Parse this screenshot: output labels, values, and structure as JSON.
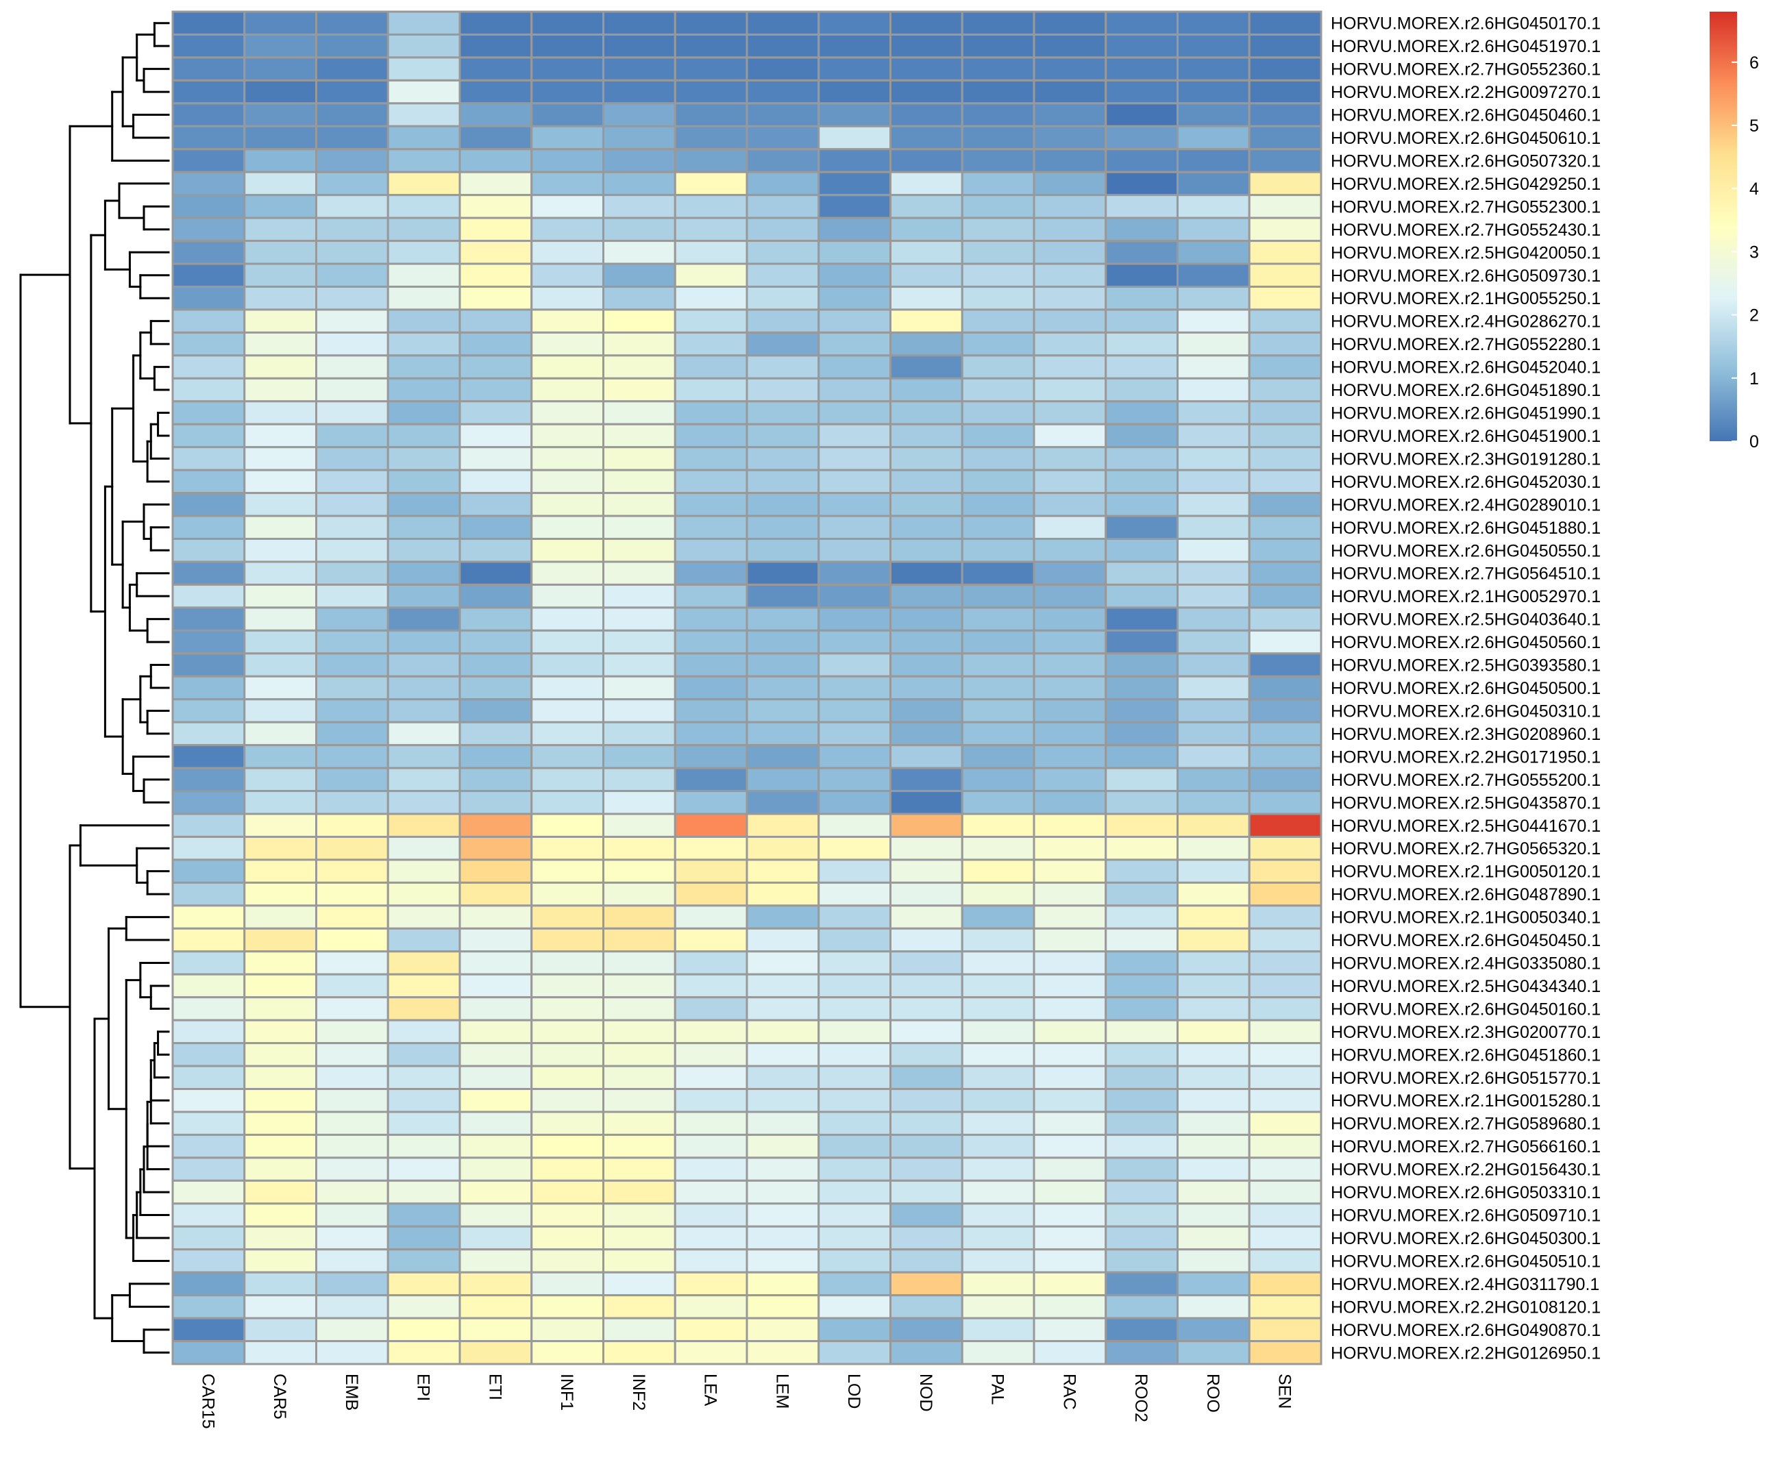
{
  "chart_data": {
    "type": "heatmap",
    "columns": [
      "CAR15",
      "CAR5",
      "EMB",
      "EPI",
      "ETI",
      "INF1",
      "INF2",
      "LEA",
      "LEM",
      "LOD",
      "NOD",
      "PAL",
      "RAC",
      "ROO2",
      "ROO",
      "SEN"
    ],
    "rows": [
      "HORVU.MOREX.r2.6HG0450170.1",
      "HORVU.MOREX.r2.6HG0451970.1",
      "HORVU.MOREX.r2.7HG0552360.1",
      "HORVU.MOREX.r2.2HG0097270.1",
      "HORVU.MOREX.r2.6HG0450460.1",
      "HORVU.MOREX.r2.6HG0450610.1",
      "HORVU.MOREX.r2.6HG0507320.1",
      "HORVU.MOREX.r2.5HG0429250.1",
      "HORVU.MOREX.r2.7HG0552300.1",
      "HORVU.MOREX.r2.7HG0552430.1",
      "HORVU.MOREX.r2.5HG0420050.1",
      "HORVU.MOREX.r2.6HG0509730.1",
      "HORVU.MOREX.r2.1HG0055250.1",
      "HORVU.MOREX.r2.4HG0286270.1",
      "HORVU.MOREX.r2.7HG0552280.1",
      "HORVU.MOREX.r2.6HG0452040.1",
      "HORVU.MOREX.r2.6HG0451890.1",
      "HORVU.MOREX.r2.6HG0451990.1",
      "HORVU.MOREX.r2.6HG0451900.1",
      "HORVU.MOREX.r2.3HG0191280.1",
      "HORVU.MOREX.r2.6HG0452030.1",
      "HORVU.MOREX.r2.4HG0289010.1",
      "HORVU.MOREX.r2.6HG0451880.1",
      "HORVU.MOREX.r2.6HG0450550.1",
      "HORVU.MOREX.r2.7HG0564510.1",
      "HORVU.MOREX.r2.1HG0052970.1",
      "HORVU.MOREX.r2.5HG0403640.1",
      "HORVU.MOREX.r2.6HG0450560.1",
      "HORVU.MOREX.r2.5HG0393580.1",
      "HORVU.MOREX.r2.6HG0450500.1",
      "HORVU.MOREX.r2.6HG0450310.1",
      "HORVU.MOREX.r2.3HG0208960.1",
      "HORVU.MOREX.r2.2HG0171950.1",
      "HORVU.MOREX.r2.7HG0555200.1",
      "HORVU.MOREX.r2.5HG0435870.1",
      "HORVU.MOREX.r2.5HG0441670.1",
      "HORVU.MOREX.r2.7HG0565320.1",
      "HORVU.MOREX.r2.1HG0050120.1",
      "HORVU.MOREX.r2.6HG0487890.1",
      "HORVU.MOREX.r2.1HG0050340.1",
      "HORVU.MOREX.r2.6HG0450450.1",
      "HORVU.MOREX.r2.4HG0335080.1",
      "HORVU.MOREX.r2.5HG0434340.1",
      "HORVU.MOREX.r2.6HG0450160.1",
      "HORVU.MOREX.r2.3HG0200770.1",
      "HORVU.MOREX.r2.6HG0451860.1",
      "HORVU.MOREX.r2.6HG0515770.1",
      "HORVU.MOREX.r2.1HG0015280.1",
      "HORVU.MOREX.r2.7HG0589680.1",
      "HORVU.MOREX.r2.7HG0566160.1",
      "HORVU.MOREX.r2.2HG0156430.1",
      "HORVU.MOREX.r2.6HG0503310.1",
      "HORVU.MOREX.r2.6HG0509710.1",
      "HORVU.MOREX.r2.6HG0450300.1",
      "HORVU.MOREX.r2.6HG0450510.1",
      "HORVU.MOREX.r2.4HG0311790.1",
      "HORVU.MOREX.r2.2HG0108120.1",
      "HORVU.MOREX.r2.6HG0490870.1",
      "HORVU.MOREX.r2.2HG0126950.1"
    ],
    "values": [
      [
        0.1,
        0.3,
        0.3,
        1.4,
        0.1,
        0.1,
        0.1,
        0.1,
        0.1,
        0.2,
        0.1,
        0.1,
        0.1,
        0.2,
        0.2,
        0.1
      ],
      [
        0.2,
        0.5,
        0.4,
        1.5,
        0.1,
        0.1,
        0.1,
        0.1,
        0.1,
        0.1,
        0.1,
        0.1,
        0.1,
        0.2,
        0.2,
        0.1
      ],
      [
        0.3,
        0.4,
        0.2,
        1.8,
        0.2,
        0.2,
        0.2,
        0.2,
        0.1,
        0.2,
        0.2,
        0.2,
        0.2,
        0.2,
        0.2,
        0.1
      ],
      [
        0.2,
        0.1,
        0.2,
        2.4,
        0.2,
        0.2,
        0.2,
        0.2,
        0.2,
        0.1,
        0.1,
        0.1,
        0.1,
        0.2,
        0.2,
        0.1
      ],
      [
        0.3,
        0.5,
        0.4,
        1.9,
        0.7,
        0.4,
        0.8,
        0.4,
        0.4,
        0.5,
        0.3,
        0.3,
        0.4,
        0.0,
        0.4,
        0.3
      ],
      [
        0.4,
        0.4,
        0.4,
        1.1,
        0.4,
        1.1,
        0.9,
        0.5,
        0.5,
        2.0,
        0.4,
        0.4,
        0.5,
        0.6,
        1.0,
        0.4
      ],
      [
        0.3,
        1.0,
        0.8,
        1.2,
        1.1,
        1.0,
        0.8,
        0.7,
        0.5,
        0.3,
        0.3,
        0.4,
        0.4,
        0.3,
        0.3,
        0.4
      ],
      [
        0.8,
        2.0,
        1.2,
        3.8,
        2.8,
        1.2,
        1.1,
        3.5,
        1.0,
        0.2,
        2.1,
        1.2,
        0.9,
        0.0,
        0.4,
        4.0
      ],
      [
        0.7,
        1.1,
        1.9,
        1.8,
        3.2,
        2.3,
        1.7,
        1.6,
        1.4,
        0.2,
        1.5,
        1.3,
        1.4,
        1.7,
        1.9,
        2.7
      ],
      [
        0.8,
        1.6,
        1.5,
        1.5,
        3.5,
        1.6,
        1.5,
        1.6,
        1.4,
        0.8,
        1.3,
        1.5,
        1.4,
        0.9,
        1.4,
        3.0
      ],
      [
        0.5,
        1.5,
        1.5,
        1.8,
        3.7,
        2.1,
        2.4,
        2.0,
        1.5,
        1.3,
        1.8,
        1.5,
        1.4,
        0.5,
        0.9,
        3.8
      ],
      [
        0.2,
        1.5,
        1.3,
        2.5,
        3.5,
        1.7,
        0.9,
        3.0,
        1.6,
        1.0,
        1.6,
        1.7,
        1.6,
        0.1,
        0.3,
        3.8
      ],
      [
        0.6,
        1.7,
        1.7,
        2.5,
        3.3,
        2.1,
        1.4,
        2.2,
        1.8,
        1.1,
        2.1,
        1.8,
        1.7,
        1.3,
        1.5,
        3.7
      ],
      [
        1.4,
        3.0,
        2.4,
        1.4,
        1.4,
        3.2,
        3.4,
        1.8,
        1.4,
        1.4,
        3.5,
        1.4,
        1.4,
        1.4,
        2.3,
        1.5
      ],
      [
        1.3,
        2.7,
        2.2,
        1.6,
        1.2,
        2.8,
        3.0,
        1.6,
        0.8,
        1.3,
        0.9,
        1.2,
        1.6,
        1.8,
        2.5,
        1.4
      ],
      [
        1.7,
        3.0,
        2.5,
        1.3,
        1.3,
        3.1,
        3.0,
        1.4,
        1.6,
        1.2,
        0.4,
        1.5,
        1.7,
        1.7,
        2.4,
        1.2
      ],
      [
        1.8,
        2.8,
        2.5,
        1.2,
        1.3,
        3.0,
        3.2,
        1.8,
        1.7,
        1.4,
        1.2,
        1.6,
        1.8,
        1.5,
        2.2,
        1.5
      ],
      [
        1.2,
        2.1,
        2.1,
        1.0,
        1.6,
        2.7,
        2.6,
        1.2,
        1.3,
        1.3,
        1.3,
        1.4,
        1.5,
        1.0,
        1.6,
        1.4
      ],
      [
        1.3,
        2.3,
        1.3,
        1.3,
        2.3,
        2.8,
        2.8,
        1.2,
        1.3,
        1.7,
        1.4,
        1.2,
        2.3,
        0.9,
        1.7,
        1.5
      ],
      [
        1.6,
        2.3,
        1.4,
        1.5,
        2.4,
        2.8,
        3.0,
        1.3,
        1.4,
        1.7,
        1.5,
        1.4,
        1.5,
        1.4,
        1.8,
        1.6
      ],
      [
        1.2,
        2.3,
        1.7,
        1.3,
        2.2,
        2.7,
        2.9,
        1.4,
        1.4,
        1.6,
        1.4,
        1.3,
        1.6,
        1.3,
        1.7,
        1.7
      ],
      [
        0.7,
        2.0,
        1.7,
        1.0,
        1.4,
        2.9,
        2.9,
        1.2,
        1.1,
        1.2,
        1.3,
        1.1,
        1.4,
        1.2,
        1.9,
        0.9
      ],
      [
        1.2,
        2.6,
        1.9,
        1.3,
        1.0,
        2.6,
        2.6,
        1.3,
        1.2,
        1.4,
        1.2,
        1.2,
        2.1,
        0.4,
        1.8,
        1.3
      ],
      [
        1.5,
        2.2,
        2.0,
        1.5,
        1.5,
        3.1,
        3.0,
        1.4,
        1.3,
        1.4,
        1.3,
        1.3,
        1.3,
        1.2,
        2.2,
        1.2
      ],
      [
        0.5,
        2.0,
        1.5,
        1.0,
        0.1,
        2.7,
        2.7,
        0.8,
        0.1,
        0.6,
        0.1,
        0.2,
        0.8,
        1.5,
        1.7,
        1.0
      ],
      [
        1.9,
        2.6,
        2.0,
        1.1,
        0.7,
        2.5,
        2.2,
        1.3,
        0.4,
        0.6,
        0.9,
        0.9,
        0.9,
        1.3,
        1.7,
        1.0
      ],
      [
        0.5,
        2.5,
        1.2,
        0.5,
        1.3,
        2.2,
        2.2,
        1.2,
        1.2,
        1.0,
        1.0,
        1.2,
        1.1,
        0.2,
        1.4,
        1.6
      ],
      [
        0.6,
        1.8,
        1.3,
        1.2,
        1.3,
        2.0,
        2.0,
        1.2,
        1.1,
        1.2,
        1.1,
        1.1,
        1.2,
        0.3,
        1.5,
        2.3
      ],
      [
        0.5,
        1.8,
        1.2,
        1.4,
        1.2,
        1.8,
        2.0,
        1.1,
        1.1,
        1.6,
        1.1,
        1.3,
        1.3,
        0.9,
        1.4,
        0.3
      ],
      [
        1.1,
        2.3,
        1.5,
        1.4,
        1.3,
        2.2,
        2.4,
        1.0,
        1.2,
        1.3,
        1.2,
        1.3,
        1.3,
        0.9,
        1.9,
        0.7
      ],
      [
        1.3,
        2.1,
        1.2,
        1.4,
        0.9,
        2.2,
        2.2,
        1.1,
        1.3,
        1.3,
        0.9,
        1.3,
        1.1,
        0.8,
        1.4,
        0.8
      ],
      [
        1.8,
        2.5,
        1.1,
        2.4,
        1.6,
        2.0,
        1.8,
        1.1,
        1.2,
        1.4,
        0.9,
        1.2,
        1.1,
        0.8,
        1.4,
        1.2
      ],
      [
        0.2,
        1.3,
        1.2,
        1.5,
        1.1,
        1.5,
        1.3,
        0.9,
        0.7,
        1.1,
        1.4,
        0.9,
        1.1,
        1.0,
        1.7,
        1.2
      ],
      [
        0.6,
        1.8,
        1.2,
        1.8,
        1.3,
        1.8,
        1.8,
        0.4,
        1.0,
        1.1,
        0.3,
        1.0,
        1.2,
        1.8,
        1.1,
        0.9
      ],
      [
        0.8,
        1.8,
        1.6,
        1.7,
        1.5,
        1.8,
        2.2,
        1.2,
        0.6,
        1.0,
        0.1,
        1.2,
        1.1,
        1.5,
        1.3,
        1.2
      ],
      [
        1.6,
        3.2,
        3.5,
        4.2,
        5.3,
        3.4,
        2.7,
        5.7,
        3.9,
        2.6,
        5.1,
        3.5,
        3.5,
        3.9,
        4.0,
        6.6
      ],
      [
        2.0,
        3.9,
        4.0,
        2.5,
        5.0,
        3.6,
        3.6,
        3.5,
        3.8,
        3.5,
        2.7,
        2.8,
        3.2,
        3.2,
        2.8,
        4.0
      ],
      [
        1.1,
        3.6,
        3.7,
        2.9,
        4.6,
        3.3,
        3.3,
        4.0,
        3.6,
        1.9,
        2.7,
        3.5,
        3.2,
        1.6,
        2.0,
        4.2
      ],
      [
        1.5,
        3.3,
        3.3,
        3.1,
        4.1,
        3.1,
        2.9,
        4.3,
        3.6,
        2.4,
        2.5,
        2.9,
        2.7,
        1.5,
        3.2,
        4.6
      ],
      [
        3.3,
        2.9,
        3.5,
        2.8,
        2.8,
        4.1,
        4.3,
        2.5,
        1.1,
        1.6,
        2.7,
        1.1,
        2.7,
        2.0,
        3.7,
        1.7
      ],
      [
        3.6,
        4.1,
        3.4,
        1.6,
        2.4,
        4.2,
        4.2,
        3.5,
        2.2,
        1.6,
        2.2,
        2.0,
        2.6,
        2.4,
        3.8,
        1.9
      ],
      [
        1.8,
        3.3,
        2.3,
        4.0,
        2.4,
        2.5,
        2.5,
        1.8,
        2.3,
        2.0,
        1.7,
        2.2,
        2.2,
        1.2,
        1.8,
        1.7
      ],
      [
        2.9,
        3.3,
        2.0,
        3.7,
        2.3,
        2.7,
        2.7,
        2.0,
        2.1,
        1.9,
        1.9,
        2.0,
        2.2,
        1.2,
        1.8,
        1.7
      ],
      [
        2.5,
        3.1,
        2.3,
        4.2,
        2.5,
        2.8,
        2.7,
        1.6,
        2.1,
        2.0,
        2.0,
        2.0,
        2.2,
        1.2,
        1.9,
        1.8
      ],
      [
        2.1,
        3.2,
        2.6,
        2.1,
        3.0,
        3.0,
        3.0,
        3.0,
        3.0,
        2.7,
        2.3,
        2.5,
        2.9,
        2.8,
        3.2,
        2.8
      ],
      [
        1.6,
        3.1,
        2.4,
        1.6,
        2.7,
        2.9,
        3.0,
        2.7,
        2.3,
        2.2,
        1.8,
        2.3,
        2.3,
        1.8,
        2.2,
        2.3
      ],
      [
        1.8,
        3.1,
        2.2,
        2.0,
        2.5,
        3.1,
        2.9,
        2.3,
        1.9,
        1.9,
        1.3,
        1.9,
        2.2,
        1.5,
        2.0,
        2.1
      ],
      [
        2.3,
        3.3,
        2.5,
        1.9,
        3.3,
        2.7,
        2.7,
        2.0,
        2.0,
        1.9,
        1.7,
        1.8,
        2.0,
        1.4,
        2.2,
        2.2
      ],
      [
        2.0,
        3.3,
        2.6,
        2.0,
        2.5,
        3.0,
        3.1,
        2.6,
        2.5,
        1.8,
        1.8,
        2.1,
        2.4,
        1.5,
        2.5,
        3.2
      ],
      [
        1.7,
        3.3,
        2.6,
        2.6,
        3.0,
        3.4,
        3.3,
        2.5,
        2.8,
        1.5,
        1.5,
        1.9,
        2.3,
        2.1,
        2.6,
        2.9
      ],
      [
        1.7,
        3.1,
        2.4,
        2.3,
        2.9,
        3.5,
        3.5,
        2.2,
        2.4,
        1.8,
        1.7,
        2.1,
        2.5,
        1.5,
        2.2,
        2.4
      ],
      [
        2.7,
        3.7,
        2.8,
        2.7,
        3.2,
        3.7,
        3.8,
        2.4,
        2.4,
        2.0,
        2.0,
        2.4,
        2.6,
        1.7,
        2.7,
        2.5
      ],
      [
        2.1,
        3.3,
        2.5,
        1.1,
        2.7,
        3.2,
        3.0,
        2.1,
        2.3,
        2.1,
        1.1,
        2.1,
        2.3,
        1.8,
        2.5,
        2.1
      ],
      [
        1.8,
        3.0,
        2.3,
        1.1,
        2.0,
        3.2,
        3.1,
        2.2,
        2.2,
        2.0,
        1.7,
        2.0,
        2.3,
        1.6,
        2.7,
        2.2
      ],
      [
        1.7,
        3.1,
        2.2,
        1.3,
        2.7,
        3.0,
        3.1,
        2.2,
        2.3,
        1.8,
        1.6,
        2.1,
        2.3,
        1.5,
        2.5,
        2.0
      ],
      [
        0.7,
        1.8,
        1.4,
        3.8,
        3.8,
        2.5,
        2.3,
        3.7,
        3.3,
        1.3,
        4.8,
        3.1,
        3.2,
        0.5,
        1.2,
        4.5
      ],
      [
        1.3,
        2.3,
        2.1,
        2.7,
        3.6,
        3.3,
        3.7,
        3.0,
        3.3,
        2.3,
        1.5,
        2.8,
        2.6,
        1.3,
        2.4,
        3.8
      ],
      [
        0.2,
        1.9,
        2.6,
        3.4,
        3.3,
        3.0,
        2.6,
        3.5,
        3.2,
        1.1,
        0.8,
        2.0,
        2.4,
        0.4,
        0.8,
        4.2
      ],
      [
        1.0,
        2.2,
        2.2,
        3.5,
        4.0,
        3.3,
        3.6,
        3.2,
        3.2,
        1.6,
        1.1,
        2.5,
        2.2,
        0.8,
        1.3,
        4.6
      ]
    ],
    "colorbar": {
      "ticks": [
        0,
        1,
        2,
        3,
        4,
        5,
        6
      ],
      "range": [
        0,
        6.8
      ],
      "colors": [
        "#4575B4",
        "#91BFDB",
        "#E0F3F8",
        "#FFFFBF",
        "#FEE090",
        "#FC8D59",
        "#D73027"
      ]
    },
    "grid_color": "#999999",
    "dendrogram_color": "#000000",
    "title": "",
    "xlabel": "",
    "ylabel": ""
  }
}
